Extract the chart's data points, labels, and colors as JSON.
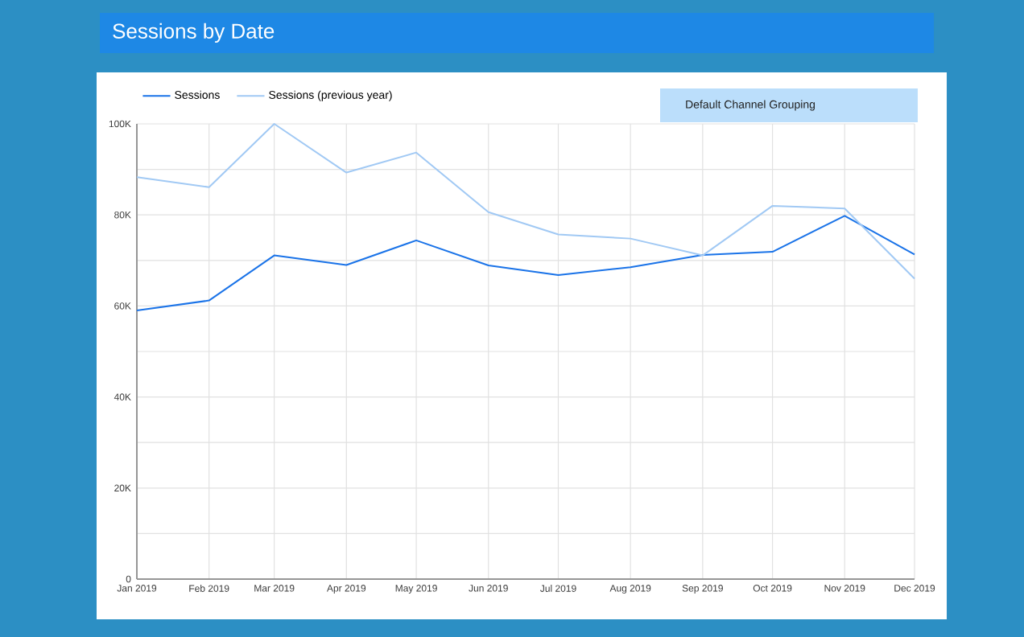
{
  "chart_data": {
    "type": "line",
    "title": "Sessions by Date",
    "x": [
      "2019-01",
      "2019-02",
      "2019-03",
      "2019-04",
      "2019-05",
      "2019-06",
      "2019-07",
      "2019-08",
      "2019-09",
      "2019-10",
      "2019-11",
      "2019-12"
    ],
    "series": [
      {
        "name": "Sessions",
        "color": "#1a73e8",
        "values": [
          59000,
          61200,
          71100,
          69000,
          74400,
          68900,
          66800,
          68500,
          71200,
          71900,
          79800,
          71300
        ]
      },
      {
        "name": "Sessions (previous year)",
        "color": "#a1c9f4",
        "values": [
          88300,
          86100,
          100000,
          89300,
          93700,
          80600,
          75700,
          74800,
          71100,
          82000,
          81400,
          66000
        ]
      }
    ],
    "xlim": [
      "2019-01",
      "2019-12"
    ],
    "xticks": [
      {
        "value": "2019-01",
        "label": "Jan 2019"
      },
      {
        "value": "2019-02",
        "label": "Feb 2019"
      },
      {
        "value": "2019-03",
        "label": "Mar 2019"
      },
      {
        "value": "2019-04",
        "label": "Apr 2019"
      },
      {
        "value": "2019-05",
        "label": "May 2019"
      },
      {
        "value": "2019-06",
        "label": "Jun 2019"
      },
      {
        "value": "2019-07",
        "label": "Jul 2019"
      },
      {
        "value": "2019-08",
        "label": "Aug 2019"
      },
      {
        "value": "2019-09",
        "label": "Sep 2019"
      },
      {
        "value": "2019-10",
        "label": "Oct 2019"
      },
      {
        "value": "2019-11",
        "label": "Nov 2019"
      },
      {
        "value": "2019-12",
        "label": "Dec 2019"
      }
    ],
    "ylim": [
      0,
      100000
    ],
    "yticks": [
      0,
      {
        "value": 10000,
        "label": null
      },
      {
        "value": 20000,
        "label": "20K"
      },
      {
        "value": 30000,
        "label": null
      },
      {
        "value": 40000,
        "label": "40K"
      },
      {
        "value": 50000,
        "label": null
      },
      {
        "value": 60000,
        "label": "60K"
      },
      {
        "value": 70000,
        "label": null
      },
      {
        "value": 80000,
        "label": "80K"
      },
      {
        "value": 90000,
        "label": null
      },
      {
        "value": 100000,
        "label": "100K"
      }
    ],
    "grid": true,
    "legend": "top left",
    "line_style": "solid",
    "annotations": [
      "Default Channel Grouping"
    ]
  }
}
